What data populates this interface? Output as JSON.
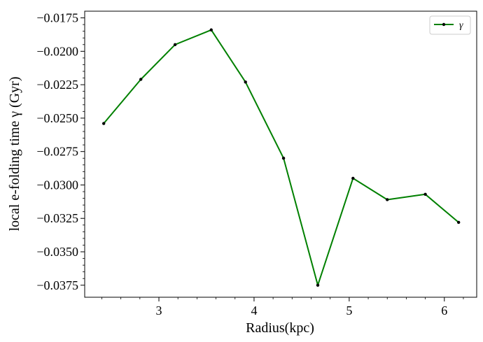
{
  "chart_data": {
    "type": "line",
    "title": "",
    "xlabel": "Radius(kpc)",
    "ylabel": "local e-folding time γ (Gyr)",
    "xlim": [
      2.22,
      6.34
    ],
    "ylim": [
      -0.0384,
      -0.017
    ],
    "x_ticks": [
      3,
      4,
      5,
      6
    ],
    "x_tick_labels": [
      "3",
      "4",
      "5",
      "6"
    ],
    "y_ticks": [
      -0.0175,
      -0.02,
      -0.0225,
      -0.025,
      -0.0275,
      -0.03,
      -0.0325,
      -0.035,
      -0.0375
    ],
    "y_tick_labels": [
      "−0.0175",
      "−0.0200",
      "−0.0225",
      "−0.0250",
      "−0.0275",
      "−0.0300",
      "−0.0325",
      "−0.0350",
      "−0.0375"
    ],
    "grid": false,
    "legend_position": "top-right",
    "series": [
      {
        "name": "γ",
        "color": "#008000",
        "marker_color": "#000000",
        "x": [
          2.42,
          2.81,
          3.17,
          3.55,
          3.91,
          4.31,
          4.67,
          5.04,
          5.4,
          5.8,
          6.15
        ],
        "y": [
          -0.0254,
          -0.0221,
          -0.0195,
          -0.0184,
          -0.0223,
          -0.028,
          -0.0375,
          -0.0295,
          -0.0311,
          -0.0307,
          -0.0328
        ]
      }
    ]
  }
}
